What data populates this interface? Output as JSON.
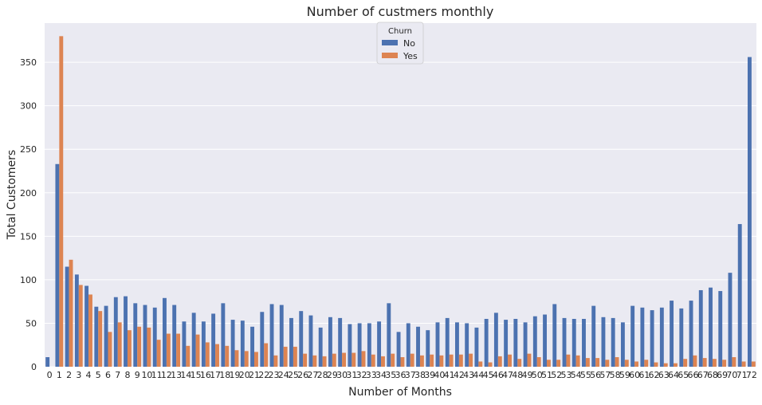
{
  "chart_data": {
    "type": "bar",
    "title": "Number of custmers monthly",
    "xlabel": "Number of Months",
    "ylabel": "Total Customers",
    "ylim": [
      0,
      395
    ],
    "yticks": [
      0,
      50,
      100,
      150,
      200,
      250,
      300,
      350
    ],
    "grid": true,
    "legend": {
      "title": "Churn",
      "position": "top-center"
    },
    "categories": [
      "0",
      "1",
      "2",
      "3",
      "4",
      "5",
      "6",
      "7",
      "8",
      "9",
      "10",
      "11",
      "12",
      "13",
      "14",
      "15",
      "16",
      "17",
      "18",
      "19",
      "20",
      "21",
      "22",
      "23",
      "24",
      "25",
      "26",
      "27",
      "28",
      "29",
      "30",
      "31",
      "32",
      "33",
      "34",
      "35",
      "36",
      "37",
      "38",
      "39",
      "40",
      "41",
      "42",
      "43",
      "44",
      "45",
      "46",
      "47",
      "48",
      "49",
      "50",
      "51",
      "52",
      "53",
      "54",
      "55",
      "56",
      "57",
      "58",
      "59",
      "60",
      "61",
      "62",
      "63",
      "64",
      "65",
      "66",
      "67",
      "68",
      "69",
      "70",
      "71",
      "72"
    ],
    "series": [
      {
        "name": "No",
        "color": "#4c72b0",
        "values": [
          11,
          233,
          115,
          106,
          93,
          69,
          70,
          80,
          81,
          73,
          71,
          68,
          79,
          71,
          52,
          62,
          52,
          61,
          73,
          54,
          53,
          46,
          63,
          72,
          71,
          56,
          64,
          59,
          45,
          57,
          56,
          49,
          50,
          50,
          52,
          73,
          40,
          50,
          46,
          42,
          51,
          56,
          51,
          50,
          45,
          55,
          62,
          54,
          55,
          51,
          58,
          60,
          72,
          56,
          55,
          55,
          70,
          57,
          56,
          51,
          70,
          68,
          65,
          68,
          76,
          67,
          76,
          88,
          91,
          87,
          108,
          164,
          356
        ]
      },
      {
        "name": "Yes",
        "color": "#dd8452",
        "values": [
          0,
          380,
          123,
          94,
          83,
          64,
          40,
          51,
          42,
          46,
          45,
          31,
          38,
          38,
          24,
          37,
          28,
          26,
          24,
          19,
          18,
          17,
          27,
          13,
          23,
          23,
          15,
          13,
          12,
          15,
          16,
          16,
          18,
          14,
          12,
          15,
          11,
          15,
          13,
          14,
          13,
          14,
          14,
          15,
          6,
          5,
          12,
          14,
          9,
          15,
          11,
          8,
          8,
          14,
          13,
          10,
          10,
          8,
          11,
          8,
          6,
          8,
          5,
          4,
          4,
          9,
          13,
          10,
          9,
          8,
          11,
          6,
          6
        ]
      }
    ]
  }
}
